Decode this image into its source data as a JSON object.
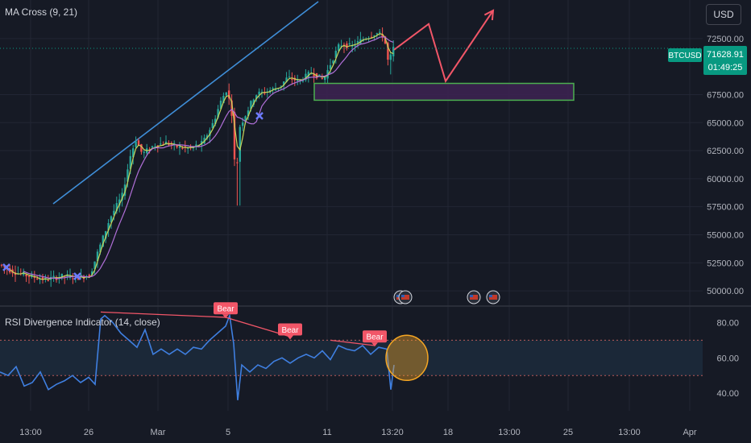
{
  "main_indicator": "MA Cross (9, 21)",
  "currency_button": "USD",
  "price_badge": {
    "symbol": "BTCUSD",
    "price": "71628.91",
    "countdown": "01:49:25"
  },
  "rsi_indicator": "RSI Divergence Indicator (14, close)",
  "bear_label": "Bear",
  "colors": {
    "background": "#161a25",
    "up_candle": "#26a69a",
    "down_candle": "#ef5350",
    "ma_fast": "#c8d65a",
    "ma_slow": "#b06fd8",
    "trendline": "#3f8ed8",
    "projection": "#f25668",
    "zone_fill": "#3b2250",
    "zone_border": "#4caf50",
    "rsi_line": "#3f7fe0",
    "rsi_band": "#1b2838",
    "bear": "#f25668",
    "highlight_circle": "#f5a623",
    "price_badge": "#089981"
  },
  "chart_data": [
    {
      "type": "candlestick",
      "title": "MA Cross (9, 21)",
      "series": [
        {
          "name": "BTCUSD"
        }
      ],
      "y_ticks": [
        "72500.00",
        "67500.00",
        "65000.00",
        "62500.00",
        "60000.00",
        "57500.00",
        "55000.00",
        "52500.00",
        "50000.00"
      ],
      "y_range": [
        49000,
        74500
      ],
      "x_ticks": [
        "13:00",
        "26",
        "Mar",
        "5",
        "11",
        "13:20",
        "18",
        "13:00",
        "25",
        "13:00",
        "Apr"
      ],
      "price_path": [
        [
          0,
          52400
        ],
        [
          20,
          51700
        ],
        [
          40,
          51300
        ],
        [
          60,
          51000
        ],
        [
          80,
          51300
        ],
        [
          100,
          51200
        ],
        [
          115,
          51400
        ],
        [
          125,
          53500
        ],
        [
          140,
          56500
        ],
        [
          155,
          58500
        ],
        [
          165,
          62000
        ],
        [
          172,
          63500
        ],
        [
          180,
          62200
        ],
        [
          195,
          63000
        ],
        [
          210,
          63200
        ],
        [
          225,
          62800
        ],
        [
          240,
          62700
        ],
        [
          255,
          63200
        ],
        [
          268,
          65000
        ],
        [
          278,
          67000
        ],
        [
          285,
          68000
        ],
        [
          292,
          65500
        ],
        [
          296,
          59000
        ],
        [
          300,
          64500
        ],
        [
          310,
          66000
        ],
        [
          320,
          67500
        ],
        [
          335,
          67800
        ],
        [
          350,
          68200
        ],
        [
          360,
          69000
        ],
        [
          375,
          68700
        ],
        [
          390,
          69500
        ],
        [
          405,
          68800
        ],
        [
          415,
          70500
        ],
        [
          425,
          72000
        ],
        [
          440,
          71800
        ],
        [
          455,
          72500
        ],
        [
          470,
          73000
        ],
        [
          480,
          72700
        ],
        [
          486,
          70000
        ],
        [
          490,
          71628
        ]
      ],
      "zone": {
        "from": 67000,
        "to": 68500
      },
      "projection": [
        [
          489,
          71500
        ],
        [
          532,
          73800
        ],
        [
          553,
          68700
        ],
        [
          612,
          75000
        ]
      ],
      "current_price": 71628.91
    },
    {
      "type": "line",
      "title": "RSI Divergence Indicator (14, close)",
      "y_ticks": [
        "80.00",
        "60.00",
        "40.00"
      ],
      "y_range": [
        30,
        88
      ],
      "band": [
        50,
        70
      ],
      "x": [
        0,
        10,
        20,
        30,
        40,
        50,
        60,
        70,
        80,
        90,
        100,
        110,
        118,
        125,
        130,
        140,
        150,
        160,
        170,
        180,
        190,
        200,
        210,
        220,
        230,
        240,
        250,
        260,
        270,
        280,
        285,
        290,
        295,
        300,
        310,
        320,
        330,
        340,
        350,
        360,
        370,
        380,
        390,
        400,
        410,
        420,
        430,
        440,
        450,
        460,
        470,
        480,
        485,
        489
      ],
      "values": [
        52,
        50,
        55,
        44,
        46,
        52,
        42,
        45,
        47,
        50,
        46,
        49,
        45,
        82,
        84,
        80,
        74,
        70,
        66,
        76,
        62,
        65,
        62,
        65,
        62,
        66,
        65,
        70,
        74,
        78,
        84,
        68,
        36,
        56,
        52,
        56,
        54,
        58,
        60,
        57,
        60,
        62,
        60,
        64,
        59,
        67,
        65,
        64,
        67,
        62,
        66,
        65,
        42,
        56
      ],
      "divergence_lines": [
        [
          [
            125,
            86
          ],
          [
            280,
            83
          ]
        ],
        [
          [
            280,
            83
          ],
          [
            360,
            72
          ]
        ],
        [
          [
            410,
            70
          ],
          [
            465,
            67
          ]
        ]
      ],
      "bear_labels": [
        {
          "x": 280,
          "value": 87
        },
        {
          "x": 360,
          "value": 75
        },
        {
          "x": 465,
          "value": 71
        }
      ],
      "highlight": {
        "x": 505,
        "value": 60
      }
    }
  ]
}
